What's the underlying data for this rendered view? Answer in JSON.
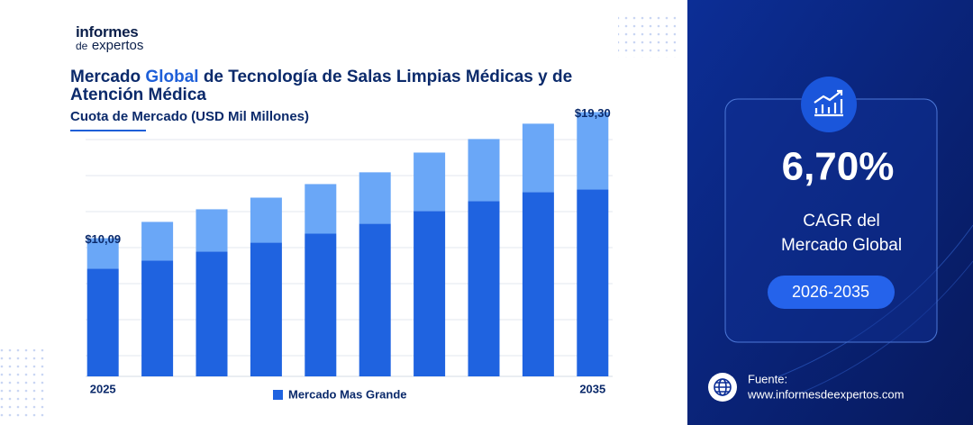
{
  "brand": [
    "informes",
    "de",
    "expertos"
  ],
  "chart_data": {
    "type": "bar",
    "title": [
      "Mercado",
      "Global",
      "de Tecnología de Salas Limpias Médicas y de Atención Médica"
    ],
    "subtitle": "Cuota de Mercado (USD Mil Millones)",
    "categories": [
      "2025",
      null,
      null,
      null,
      null,
      null,
      null,
      null,
      null,
      "2035"
    ],
    "series": [
      {
        "name": "Mercado Mas Grande",
        "color": "#1f63e0",
        "values": [
          7.86,
          8.45,
          9.11,
          9.76,
          10.42,
          11.14,
          12.07,
          12.79,
          13.45,
          13.64
        ]
      },
      {
        "color": "#6aa7f7",
        "values": [
          2.23,
          2.83,
          3.09,
          3.29,
          3.62,
          3.76,
          4.27,
          4.54,
          5.0,
          5.66
        ]
      }
    ],
    "total_labels": {
      "values": [
        10.09,
        19.3
      ],
      "value_labels": [
        "$10,09",
        "$19,30"
      ]
    },
    "ylim": [
      1,
      20
    ],
    "grid": true
  },
  "panel": {
    "cagr": "6,70%",
    "cagr_label": [
      "CAGR del",
      "Mercado Global"
    ],
    "period": "2026-2035",
    "source_label": "Fuente:",
    "source_url": "www.informesdeexpertos.com"
  }
}
